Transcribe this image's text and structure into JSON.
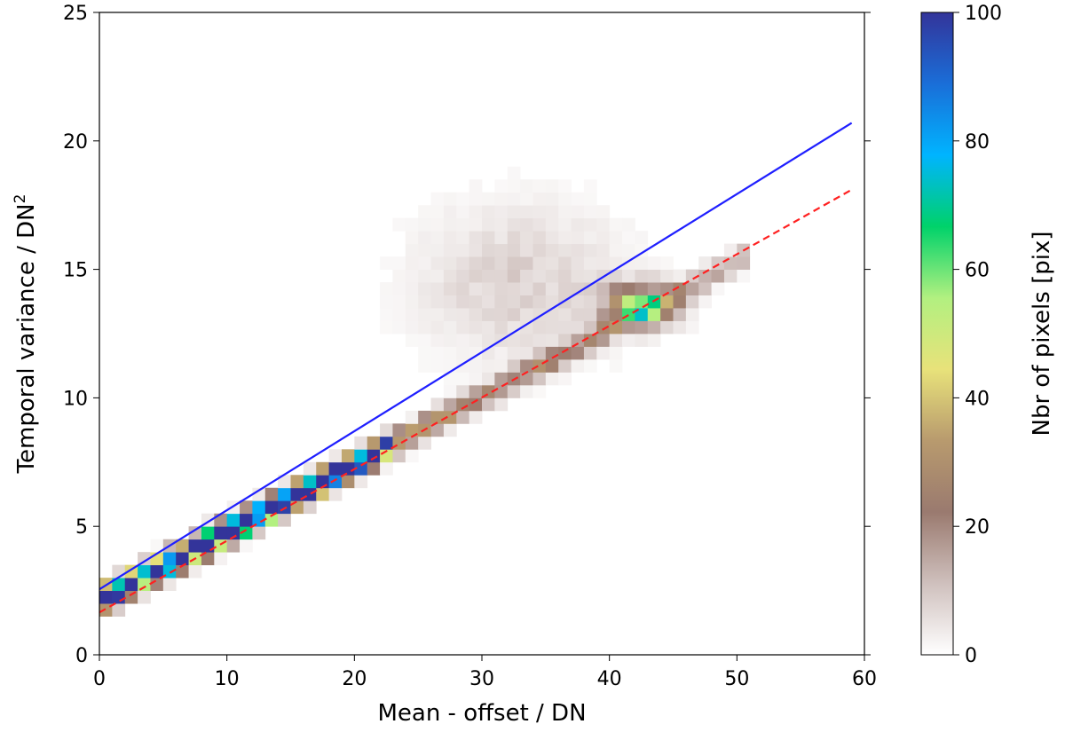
{
  "chart_data": {
    "type": "heatmap",
    "xlabel": "Mean - offset / DN",
    "ylabel": {
      "text": "Temporal variance / DN",
      "superscript": "2"
    },
    "xlim": [
      0,
      60
    ],
    "ylim": [
      0,
      25
    ],
    "x_ticks": [
      "0",
      "10",
      "20",
      "30",
      "40",
      "50",
      "60"
    ],
    "y_ticks": [
      "0",
      "5",
      "10",
      "15",
      "20",
      "25"
    ],
    "bin_width_x": 1.0,
    "bin_height_y": 0.5,
    "colorbar": {
      "label": "Nbr of pixels [pix]",
      "range": [
        0,
        100
      ],
      "ticks": [
        "0",
        "20",
        "40",
        "60",
        "80",
        "100"
      ],
      "colormap": "terrain_r",
      "stops": [
        "#ffffff",
        "#cfc0bd",
        "#9a7a6f",
        "#b89a6e",
        "#e8e27a",
        "#b2f080",
        "#00d26a",
        "#00b4ff",
        "#1a6ed8",
        "#33349a"
      ]
    },
    "series": [
      {
        "kind": "line",
        "style": "solid",
        "color": "#1f1fff",
        "x": [
          0,
          59
        ],
        "y": [
          2.55,
          20.7
        ]
      },
      {
        "kind": "line",
        "style": "dashed",
        "color": "#ff2020",
        "x": [
          0,
          59
        ],
        "y": [
          1.65,
          18.1
        ]
      }
    ],
    "components": [
      {
        "kind": "main-ridge",
        "x_start": 0,
        "x_end": 50,
        "y_start": 2.1,
        "y_end": 15.3,
        "width": 0.45,
        "peak_x": 8,
        "peak_value": 100,
        "decay_x": 12
      },
      {
        "kind": "secondary-ridge",
        "x_start": 9,
        "x_end": 22,
        "y_start": 4.6,
        "y_end": 7.9,
        "width": 0.4,
        "peak_value": 62
      },
      {
        "kind": "cluster",
        "x_center": 42.5,
        "y_center": 13.6,
        "sx": 2.6,
        "sy": 0.75,
        "peak_value": 48
      },
      {
        "kind": "diffuse-cloud",
        "x_center": 33,
        "y_center": 14.5,
        "sx": 8,
        "sy": 3,
        "peak_value": 8
      }
    ]
  }
}
